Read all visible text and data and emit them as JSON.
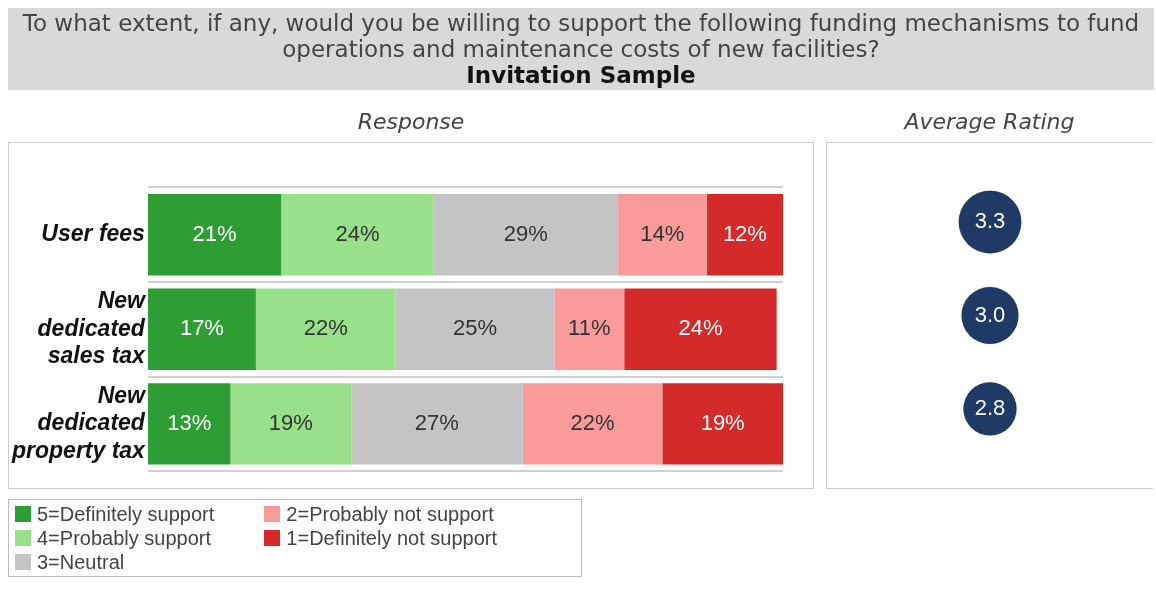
{
  "chart_data": [
    {
      "type": "bar",
      "title": "To what extent, if any, would you be willing to support the following funding mechanisms to fund operations and maintenance costs of new facilities?",
      "subtitle": "Invitation Sample",
      "xlabel": "Response",
      "categories": [
        "User fees",
        "New dedicated sales tax",
        "New dedicated property tax"
      ],
      "orientation": "horizontal",
      "stacked": true,
      "grid": "y",
      "legend": "bottom left",
      "tick_labels": "y",
      "series": [
        {
          "name": "5=Definitely support",
          "color": "#2e9e34",
          "values": [
            21,
            17,
            13
          ],
          "value_labels": [
            "21%",
            "17%",
            "13%"
          ]
        },
        {
          "name": "4=Probably support",
          "color": "#98e08a",
          "values": [
            24,
            22,
            19
          ],
          "value_labels": [
            "24%",
            "22%",
            "19%"
          ]
        },
        {
          "name": "3=Neutral",
          "color": "#c4c4c4",
          "values": [
            29,
            25,
            27
          ],
          "value_labels": [
            "29%",
            "25%",
            "27%"
          ]
        },
        {
          "name": "2=Probably not support",
          "color": "#f99b9b",
          "values": [
            14,
            11,
            22
          ],
          "value_labels": [
            "14%",
            "11%",
            "22%"
          ]
        },
        {
          "name": "1=Definitely not support",
          "color": "#d42a2a",
          "values": [
            12,
            24,
            19
          ],
          "value_labels": [
            "12%",
            "24%",
            "19%"
          ]
        }
      ]
    },
    {
      "type": "other",
      "title": "Average Rating",
      "categories": [
        null,
        null,
        null
      ],
      "values": [
        3.3,
        3.0,
        2.8
      ],
      "value_labels": [
        "3.3",
        "3.0",
        "2.8"
      ],
      "color": "#1f3a64"
    }
  ]
}
